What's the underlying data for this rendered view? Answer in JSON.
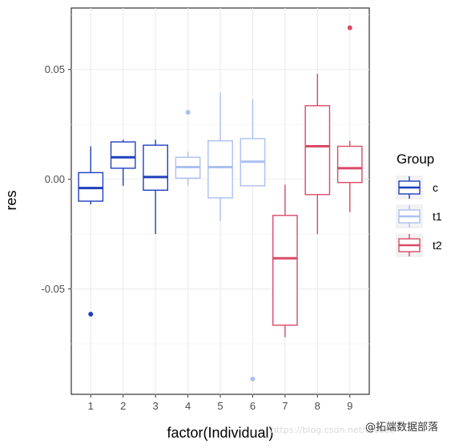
{
  "chart_data": {
    "type": "boxplot",
    "xlabel": "factor(Individual)",
    "ylabel": "res",
    "categories": [
      "1",
      "2",
      "3",
      "4",
      "5",
      "6",
      "7",
      "8",
      "9"
    ],
    "ylim": [
      -0.098,
      0.078
    ],
    "y_ticks": [
      -0.05,
      0.0,
      0.05
    ],
    "y_tick_labels": [
      "-0.05",
      "0.00",
      "0.05"
    ],
    "grid": true,
    "legend": {
      "title": "Group",
      "position": "right",
      "entries": [
        {
          "label": "c",
          "color": "#1f3fbf"
        },
        {
          "label": "t1",
          "color": "#aac0f0"
        },
        {
          "label": "t2",
          "color": "#d94a68"
        }
      ]
    },
    "boxes": [
      {
        "x": "1",
        "group": "c",
        "whisker_low": -0.0115,
        "q1": -0.01,
        "median": -0.004,
        "q3": 0.003,
        "whisker_high": 0.015,
        "outliers": [
          -0.0615
        ]
      },
      {
        "x": "2",
        "group": "c",
        "whisker_low": -0.003,
        "q1": 0.005,
        "median": 0.01,
        "q3": 0.017,
        "whisker_high": 0.018,
        "outliers": []
      },
      {
        "x": "3",
        "group": "c",
        "whisker_low": -0.025,
        "q1": -0.005,
        "median": 0.001,
        "q3": 0.0155,
        "whisker_high": 0.018,
        "outliers": []
      },
      {
        "x": "4",
        "group": "t1",
        "whisker_low": -0.003,
        "q1": 0.0005,
        "median": 0.0055,
        "q3": 0.01,
        "whisker_high": 0.0125,
        "outliers": [
          0.0305
        ]
      },
      {
        "x": "5",
        "group": "t1",
        "whisker_low": -0.019,
        "q1": -0.0085,
        "median": 0.0055,
        "q3": 0.0175,
        "whisker_high": 0.0395,
        "outliers": []
      },
      {
        "x": "6",
        "group": "t1",
        "whisker_low": -0.003,
        "q1": -0.003,
        "median": 0.008,
        "q3": 0.0185,
        "whisker_high": 0.0365,
        "outliers": [
          -0.091
        ]
      },
      {
        "x": "7",
        "group": "t2",
        "whisker_low": -0.072,
        "q1": -0.0665,
        "median": -0.036,
        "q3": -0.0165,
        "whisker_high": -0.0025,
        "outliers": []
      },
      {
        "x": "8",
        "group": "t2",
        "whisker_low": -0.025,
        "q1": -0.007,
        "median": 0.015,
        "q3": 0.0335,
        "whisker_high": 0.048,
        "outliers": []
      },
      {
        "x": "9",
        "group": "t2",
        "whisker_low": -0.015,
        "q1": -0.0015,
        "median": 0.005,
        "q3": 0.015,
        "whisker_high": 0.0175,
        "outliers": [
          0.069
        ]
      }
    ]
  },
  "watermark": {
    "text": "@拓端数据部落",
    "url": "https://blog.csdn.net/tecdat"
  }
}
